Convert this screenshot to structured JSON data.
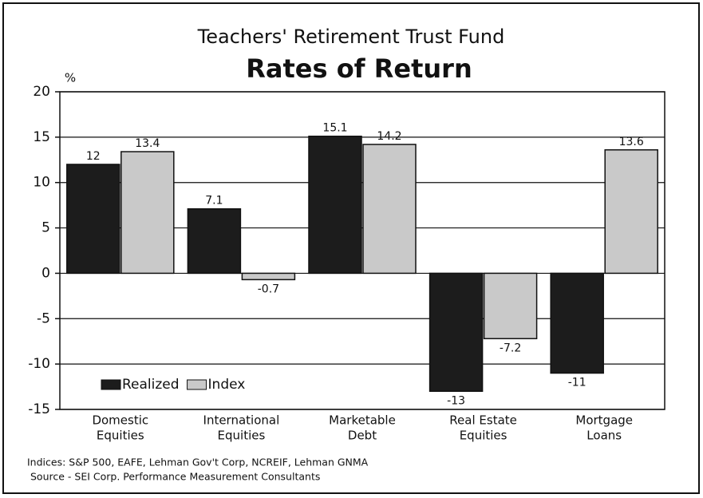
{
  "chart_data": {
    "type": "bar",
    "title": "Teachers' Retirement Trust Fund",
    "subtitle": "Rates of Return",
    "y_label": "%",
    "categories": [
      [
        "Domestic",
        "Equities"
      ],
      [
        "International",
        "Equities"
      ],
      [
        "Marketable",
        "Debt"
      ],
      [
        "Real Estate",
        "Equities"
      ],
      [
        "Mortgage",
        "Loans"
      ]
    ],
    "series": [
      {
        "name": "Realized",
        "color": "#1c1c1c",
        "values": [
          12,
          7.1,
          15.1,
          -13,
          -11
        ]
      },
      {
        "name": "Index",
        "color": "#c9c9c9",
        "values": [
          13.4,
          -0.7,
          14.2,
          -7.2,
          13.6
        ]
      }
    ],
    "ylim": [
      -15,
      20
    ],
    "yticks": [
      -15,
      -10,
      -5,
      0,
      5,
      10,
      15,
      20
    ],
    "grid": true,
    "legend": "lower left",
    "notes": [
      "Indices: S&P 500, EAFE, Lehman Gov't Corp, NCREIF, Lehman GNMA",
      "Source - SEI Corp. Performance Measurement Consultants"
    ]
  }
}
